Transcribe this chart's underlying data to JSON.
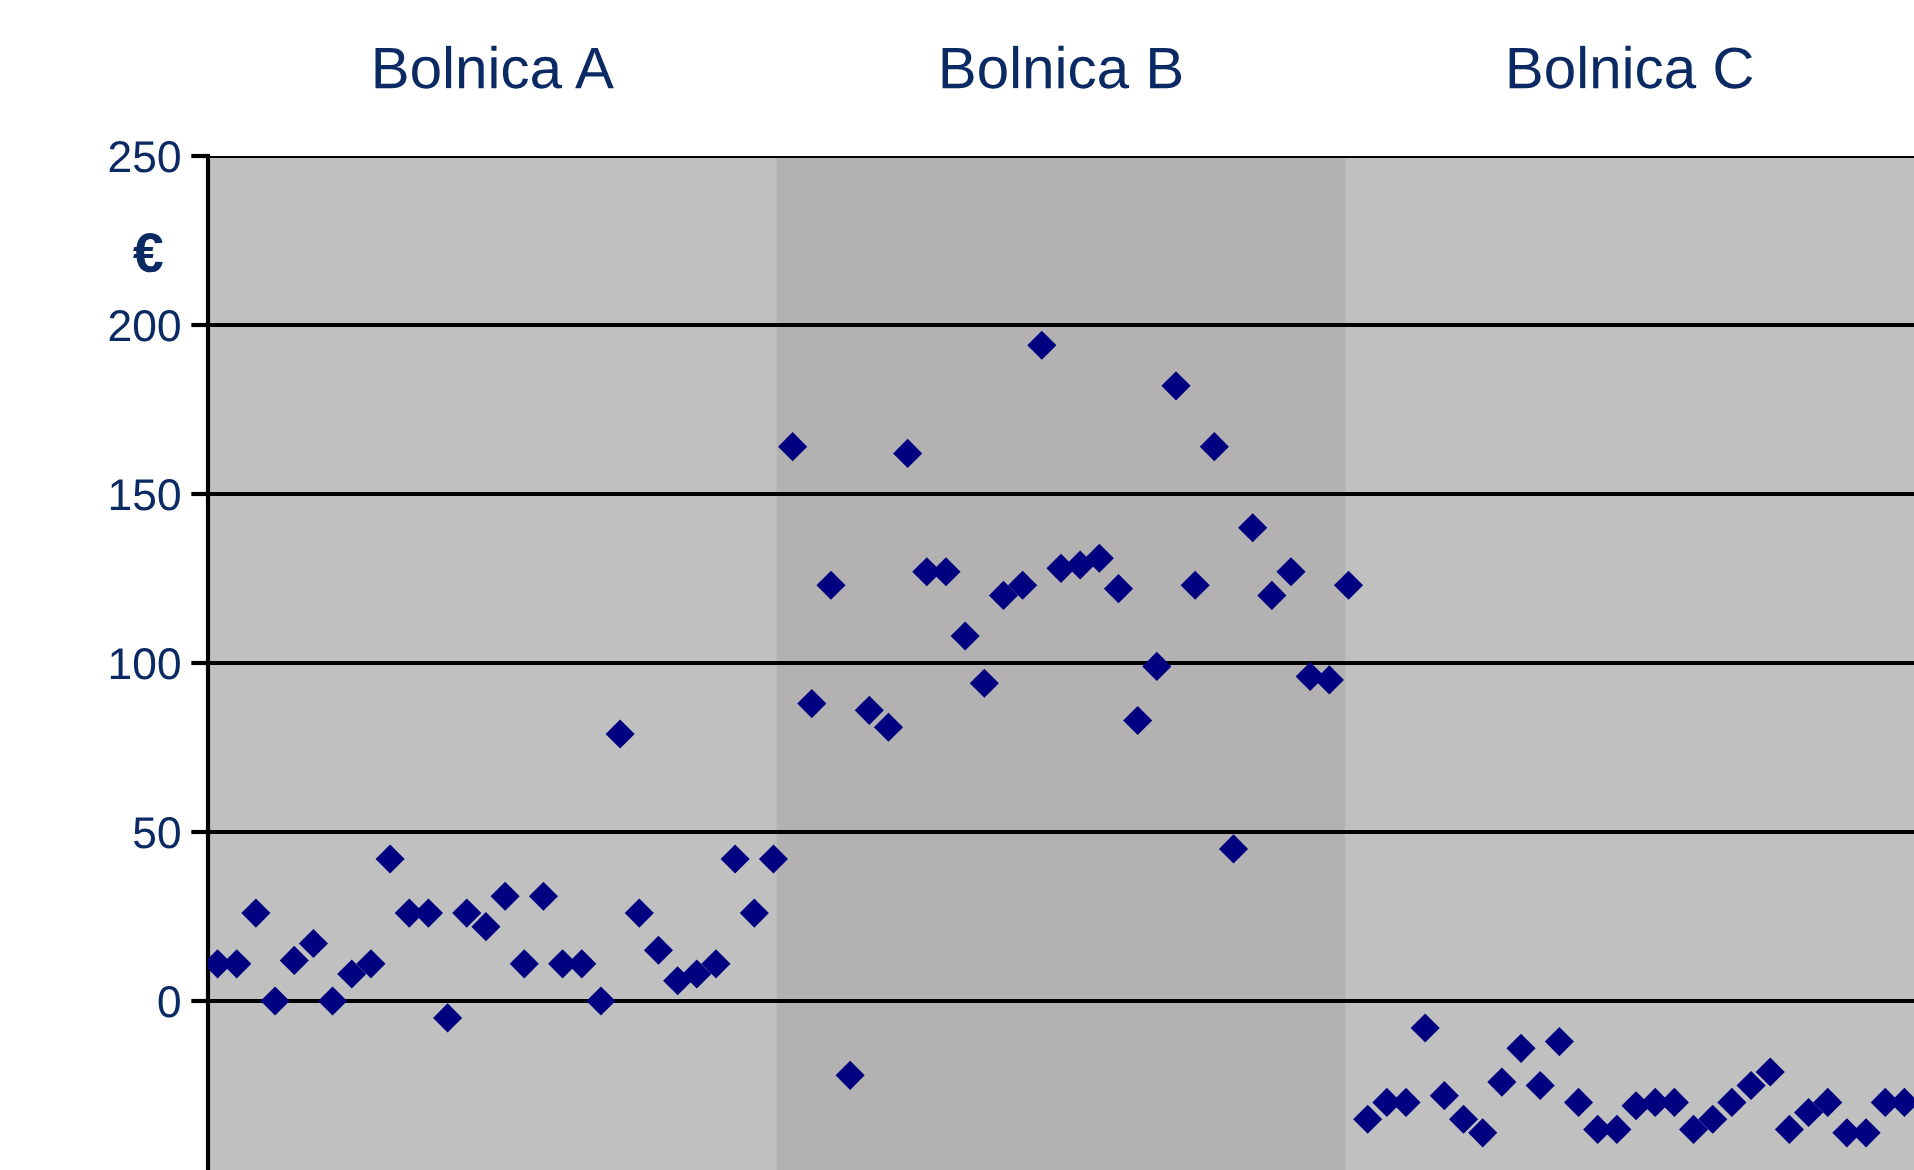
{
  "chart_data": {
    "type": "scatter",
    "ylabel": "€",
    "categories": [
      null,
      null,
      null,
      null,
      null,
      null,
      null,
      null,
      null,
      null,
      null,
      null,
      null,
      null,
      null,
      null,
      null,
      null,
      null,
      null,
      null,
      null,
      null,
      null,
      null,
      null,
      null,
      null,
      null,
      null,
      null,
      null,
      null,
      null,
      null,
      null,
      null,
      null,
      null,
      null,
      null,
      null,
      null,
      null,
      null,
      null,
      null,
      null,
      null,
      null,
      null,
      null,
      null,
      null,
      null,
      null,
      null,
      null,
      null,
      null,
      null,
      null,
      null,
      null,
      null,
      null,
      null,
      null,
      null,
      null,
      null,
      null,
      null,
      null,
      null,
      null,
      null,
      null,
      null,
      null,
      null,
      null,
      null,
      null,
      null,
      null,
      null,
      null,
      null
    ],
    "series": [
      {
        "color": "#000080",
        "values": [
          11,
          11,
          26,
          0,
          12,
          17,
          0,
          8,
          11,
          42,
          26,
          26,
          -5,
          26,
          22,
          31,
          11,
          31,
          11,
          11,
          0,
          79,
          26,
          15,
          6,
          8,
          11,
          42,
          26,
          42,
          164,
          88,
          123,
          -22,
          86,
          81,
          162,
          127,
          127,
          108,
          94,
          120,
          123,
          194,
          128,
          129,
          131,
          122,
          83,
          99,
          182,
          123,
          164,
          45,
          140,
          120,
          127,
          96,
          95,
          123,
          -35,
          -30,
          -30,
          -8,
          -28,
          -35,
          -39,
          -24,
          -14,
          -25,
          -12,
          -30,
          -38,
          -38,
          -31,
          -30,
          -30,
          -38,
          -35,
          -30,
          -25,
          -21,
          -38,
          -33,
          -30,
          -39,
          -39,
          -30,
          -30
        ]
      }
    ],
    "marker": "diamond",
    "ylim": [
      -50,
      250
    ],
    "yticks": [
      0,
      50,
      100,
      150,
      200,
      250
    ],
    "grid": "y",
    "tick_labels": "y",
    "annotations": [
      "Bolnica A",
      "Bolnica B",
      "Bolnica C"
    ]
  }
}
